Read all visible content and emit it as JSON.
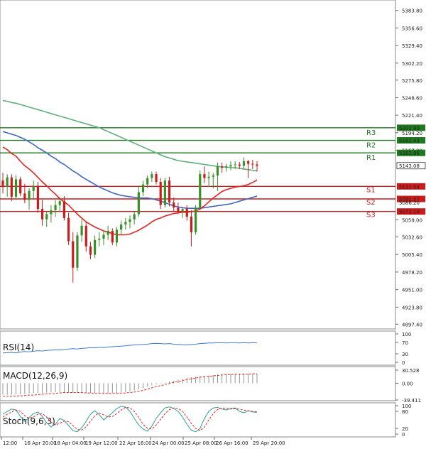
{
  "colors": {
    "bull": "#3a8f2a",
    "bear": "#cc1b1b",
    "ema_fast": "#e8231f",
    "ema_mid": "#3e68c8",
    "ema_slow": "#5eb27a",
    "resistance": "#1f7a1f",
    "support": "#cc1b1b",
    "price_box": "#ffffff",
    "rsi": "#3e7bd6",
    "macd_hist": "#888888",
    "macd_signal": "#e8231f",
    "stoch_k": "#2aa198",
    "stoch_d": "#e8231f",
    "grid": "#d0d0d0"
  },
  "chart_data": {
    "type": "candlestick",
    "price_axis": {
      "ticks": [
        "5383.80",
        "5356.60",
        "5329.40",
        "5302.20",
        "5275.80",
        "5248.60",
        "5221.40",
        "5194.20",
        "5167.00",
        "5059.00",
        "5032.60",
        "5005.40",
        "4978.20",
        "4951.00",
        "4923.80",
        "4897.40"
      ],
      "ylim": [
        4890,
        5400
      ]
    },
    "x_ticks": [
      "12:00",
      "16 Apr 20:00",
      "18 Apr 04:00",
      "19 Apr 12:00",
      "22 Apr 16:00",
      "24 Apr 00:00",
      "25 Apr 08:00",
      "26 Apr 16:00",
      "29 Apr 20:00"
    ],
    "candles": [
      [
        5120,
        5132,
        5100,
        5110
      ],
      [
        5110,
        5130,
        5095,
        5125
      ],
      [
        5125,
        5130,
        5088,
        5095
      ],
      [
        5095,
        5128,
        5090,
        5122
      ],
      [
        5122,
        5126,
        5096,
        5100
      ],
      [
        5100,
        5115,
        5085,
        5090
      ],
      [
        5090,
        5108,
        5075,
        5104
      ],
      [
        5104,
        5120,
        5092,
        5112
      ],
      [
        5112,
        5118,
        5070,
        5076
      ],
      [
        5076,
        5090,
        5050,
        5060
      ],
      [
        5060,
        5072,
        5048,
        5068
      ],
      [
        5068,
        5082,
        5055,
        5074
      ],
      [
        5074,
        5090,
        5064,
        5082
      ],
      [
        5082,
        5094,
        5072,
        5088
      ],
      [
        5088,
        5096,
        5058,
        5062
      ],
      [
        5062,
        5070,
        5020,
        5026
      ],
      [
        5026,
        5040,
        4962,
        4985
      ],
      [
        4985,
        5040,
        4980,
        5035
      ],
      [
        5035,
        5060,
        5025,
        5050
      ],
      [
        5050,
        5056,
        5010,
        5018
      ],
      [
        5018,
        5025,
        4998,
        5005
      ],
      [
        5005,
        5035,
        5000,
        5028
      ],
      [
        5028,
        5040,
        5018,
        5030
      ],
      [
        5030,
        5042,
        5020,
        5036
      ],
      [
        5036,
        5050,
        5028,
        5042
      ],
      [
        5042,
        5046,
        5020,
        5024
      ],
      [
        5024,
        5048,
        5018,
        5044
      ],
      [
        5044,
        5058,
        5036,
        5052
      ],
      [
        5052,
        5062,
        5044,
        5056
      ],
      [
        5056,
        5066,
        5046,
        5060
      ],
      [
        5060,
        5072,
        5052,
        5068
      ],
      [
        5068,
        5110,
        5064,
        5102
      ],
      [
        5102,
        5120,
        5096,
        5114
      ],
      [
        5114,
        5128,
        5108,
        5124
      ],
      [
        5124,
        5134,
        5118,
        5130
      ],
      [
        5130,
        5134,
        5114,
        5118
      ],
      [
        5118,
        5124,
        5076,
        5082
      ],
      [
        5082,
        5124,
        5078,
        5120
      ],
      [
        5120,
        5126,
        5080,
        5086
      ],
      [
        5086,
        5094,
        5072,
        5078
      ],
      [
        5078,
        5086,
        5068,
        5072
      ],
      [
        5072,
        5078,
        5062,
        5076
      ],
      [
        5076,
        5082,
        5058,
        5064
      ],
      [
        5064,
        5074,
        5018,
        5040
      ],
      [
        5040,
        5082,
        5036,
        5078
      ],
      [
        5078,
        5136,
        5074,
        5130
      ],
      [
        5130,
        5142,
        5116,
        5124
      ],
      [
        5124,
        5134,
        5110,
        5126
      ],
      [
        5126,
        5132,
        5108,
        5128
      ],
      [
        5128,
        5148,
        5104,
        5142
      ],
      [
        5142,
        5148,
        5132,
        5140
      ],
      [
        5140,
        5146,
        5134,
        5142
      ],
      [
        5142,
        5150,
        5136,
        5144
      ],
      [
        5144,
        5150,
        5138,
        5145
      ],
      [
        5145,
        5149,
        5138,
        5143
      ],
      [
        5143,
        5156,
        5138,
        5150
      ],
      [
        5150,
        5152,
        5124,
        5146
      ],
      [
        5146,
        5152,
        5138,
        5145
      ],
      [
        5145,
        5150,
        5134,
        5143
      ]
    ],
    "ema_fast": [
      5172,
      5168,
      5162,
      5158,
      5150,
      5143,
      5138,
      5132,
      5125,
      5118,
      5112,
      5105,
      5099,
      5092,
      5087,
      5082,
      5075,
      5068,
      5062,
      5056,
      5052,
      5048,
      5045,
      5042,
      5040,
      5038,
      5036,
      5036,
      5036,
      5037,
      5040,
      5043,
      5047,
      5051,
      5056,
      5060,
      5062,
      5065,
      5067,
      5069,
      5070,
      5071,
      5071,
      5072,
      5073,
      5076,
      5081,
      5087,
      5093,
      5098,
      5103,
      5106,
      5108,
      5110,
      5111,
      5112,
      5114,
      5117,
      5121
    ],
    "ema_mid": [
      5196,
      5194,
      5192,
      5190,
      5187,
      5184,
      5180,
      5176,
      5171,
      5167,
      5163,
      5158,
      5154,
      5149,
      5145,
      5140,
      5135,
      5131,
      5126,
      5122,
      5118,
      5114,
      5110,
      5107,
      5104,
      5101,
      5099,
      5097,
      5096,
      5095,
      5094,
      5093,
      5093,
      5093,
      5092,
      5090,
      5088,
      5086,
      5083,
      5081,
      5079,
      5078,
      5077,
      5077,
      5077,
      5077,
      5078,
      5079,
      5080,
      5081,
      5082,
      5083,
      5084,
      5086,
      5088,
      5090,
      5092,
      5094,
      5096
    ],
    "ema_slow": [
      5244,
      5243,
      5241,
      5240,
      5238,
      5236,
      5234,
      5232,
      5230,
      5228,
      5226,
      5224,
      5222,
      5220,
      5218,
      5216,
      5214,
      5212,
      5210,
      5208,
      5206,
      5204,
      5202,
      5199,
      5196,
      5193,
      5190,
      5187,
      5184,
      5181,
      5178,
      5175,
      5172,
      5169,
      5166,
      5163,
      5160,
      5157,
      5155,
      5153,
      5151,
      5150,
      5149,
      5148,
      5147,
      5146,
      5145,
      5144,
      5143,
      5142,
      5141,
      5141,
      5140,
      5140,
      5139,
      5138,
      5137,
      5136,
      5135
    ],
    "levels": [
      {
        "name": "R3",
        "value": 5201.9,
        "label": "5201.90",
        "kind": "resistance"
      },
      {
        "name": "R2",
        "value": 5182.43,
        "label": "5182.43",
        "kind": "resistance"
      },
      {
        "name": "R1",
        "value": 5162.96,
        "label": "5162.96",
        "kind": "resistance"
      },
      {
        "name": "S1",
        "value": 5111.04,
        "label": "5111.04",
        "kind": "support"
      },
      {
        "name": "S2",
        "value": 5091.57,
        "label": "5091.57",
        "kind": "support"
      },
      {
        "name": "S3",
        "value": 5072.1,
        "label": "5072.10",
        "kind": "support"
      }
    ],
    "current_price": {
      "value": 5143.08,
      "label": "5143.08"
    },
    "hidden_tick_label": "5086.20",
    "rsi": {
      "title": "RSI(14)",
      "ticks": [
        "100",
        "70",
        "30",
        "0"
      ],
      "ylim": [
        0,
        100
      ],
      "values": [
        33,
        34,
        35,
        33,
        36,
        38,
        37,
        39,
        41,
        40,
        42,
        43,
        44,
        43,
        45,
        47,
        48,
        47,
        49,
        50,
        52,
        51,
        53,
        52,
        54,
        55,
        56,
        57,
        58,
        60,
        61,
        62,
        63,
        64,
        66,
        67,
        66,
        65,
        66,
        64,
        63,
        62,
        61,
        63,
        64,
        66,
        67,
        68,
        68,
        69,
        69,
        68,
        69,
        69,
        68,
        69,
        68,
        69,
        68
      ]
    },
    "macd": {
      "title": "MACD(12,26,9)",
      "ticks": [
        "30.528",
        "0.00",
        "-39.411"
      ],
      "ylim": [
        -39.411,
        30.528
      ],
      "histogram": [
        -26,
        -27,
        -27,
        -26,
        -26,
        -25,
        -24,
        -24,
        -23,
        -23,
        -22,
        -22,
        -21,
        -21,
        -21,
        -21,
        -22,
        -22,
        -22,
        -23,
        -23,
        -23,
        -24,
        -24,
        -24,
        -23,
        -23,
        -22,
        -21,
        -19,
        -17,
        -14,
        -11,
        -8,
        -5,
        -3,
        -1,
        1,
        4,
        6,
        8,
        10,
        12,
        14,
        15,
        16,
        17,
        18,
        19,
        20,
        21,
        21,
        22,
        22,
        22,
        23,
        23,
        22,
        22
      ],
      "signal": [
        -31,
        -31,
        -31,
        -30,
        -30,
        -29,
        -28,
        -28,
        -27,
        -26,
        -25,
        -25,
        -24,
        -23,
        -22,
        -22,
        -22,
        -22,
        -22,
        -23,
        -23,
        -24,
        -24,
        -24,
        -24,
        -24,
        -24,
        -24,
        -23,
        -22,
        -21,
        -19,
        -17,
        -14,
        -11,
        -8,
        -6,
        -3,
        -1,
        2,
        4,
        6,
        9,
        10,
        12,
        14,
        15,
        16,
        17,
        18,
        19,
        20,
        20,
        21,
        21,
        21,
        21,
        22,
        22
      ]
    },
    "stoch": {
      "title": "Stoch(9,6,3)",
      "ticks": [
        "100",
        "80",
        "20",
        "0"
      ],
      "ylim": [
        0,
        100
      ],
      "k": [
        70,
        80,
        88,
        85,
        62,
        45,
        58,
        72,
        78,
        62,
        40,
        25,
        35,
        55,
        48,
        30,
        12,
        8,
        22,
        45,
        70,
        82,
        68,
        50,
        62,
        75,
        90,
        98,
        95,
        80,
        55,
        32,
        18,
        10,
        28,
        55,
        75,
        92,
        96,
        90,
        80,
        60,
        35,
        14,
        8,
        20,
        55,
        80,
        92,
        94,
        88,
        85,
        90,
        92,
        80,
        75,
        82,
        78,
        76
      ],
      "d": [
        60,
        70,
        78,
        85,
        80,
        64,
        56,
        60,
        70,
        72,
        60,
        42,
        32,
        38,
        46,
        44,
        30,
        16,
        14,
        25,
        45,
        65,
        74,
        68,
        60,
        62,
        72,
        85,
        94,
        92,
        80,
        58,
        35,
        20,
        18,
        32,
        52,
        72,
        86,
        92,
        90,
        80,
        60,
        38,
        20,
        12,
        25,
        50,
        72,
        86,
        92,
        90,
        88,
        89,
        88,
        84,
        82,
        80,
        78
      ]
    }
  }
}
